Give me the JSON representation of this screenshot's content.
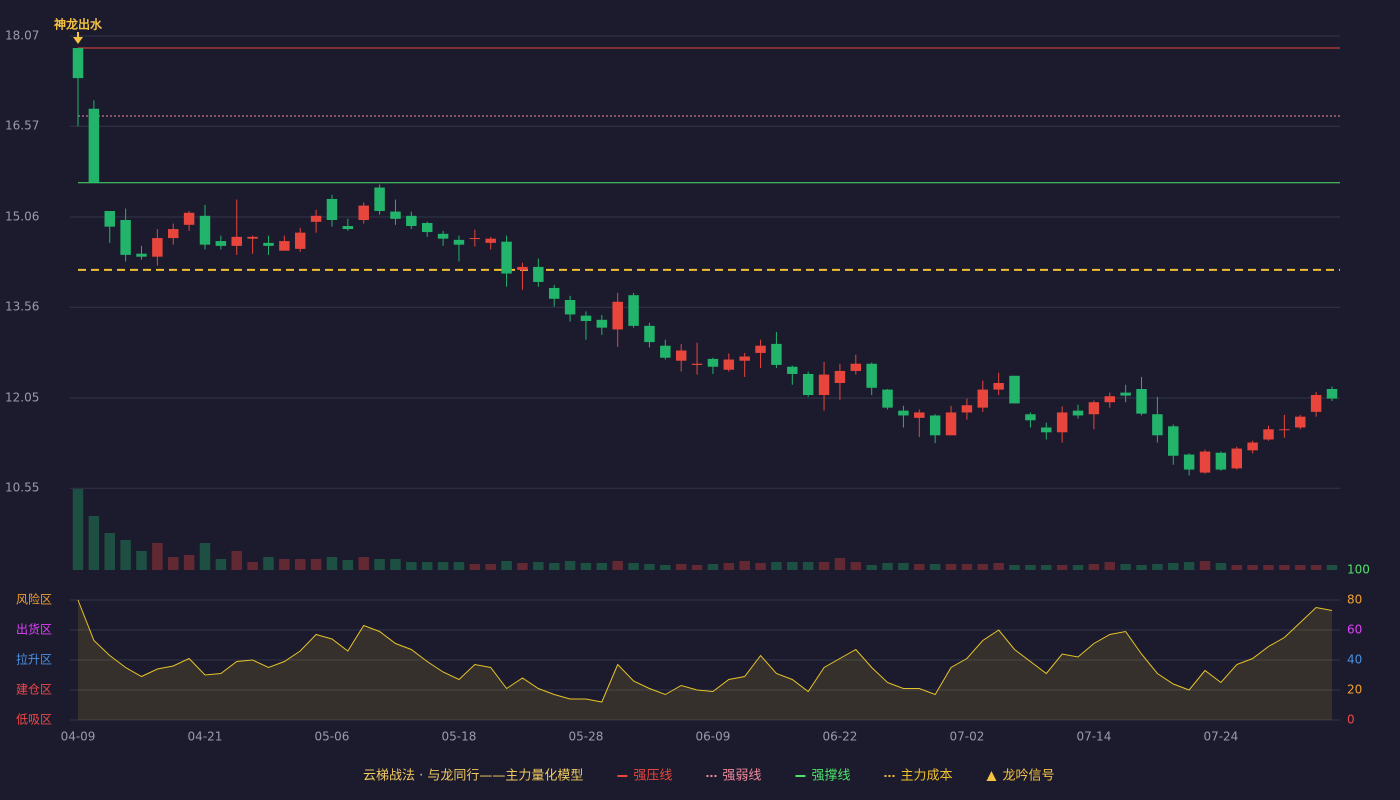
{
  "chart_data": [
    {
      "type": "candlestick",
      "categories": [
        "04-09",
        null,
        null,
        null,
        null,
        null,
        null,
        null,
        "04-21",
        null,
        null,
        null,
        null,
        null,
        null,
        null,
        "05-06",
        null,
        null,
        null,
        null,
        null,
        null,
        null,
        "05-18",
        null,
        null,
        null,
        null,
        null,
        null,
        null,
        "05-28",
        null,
        null,
        null,
        null,
        null,
        null,
        null,
        "06-09",
        null,
        null,
        null,
        null,
        null,
        null,
        null,
        "06-22",
        null,
        null,
        null,
        null,
        null,
        null,
        null,
        "07-02",
        null,
        null,
        null,
        null,
        null,
        null,
        null,
        "07-14",
        null,
        null,
        null,
        null,
        null,
        null,
        null,
        "07-24",
        null,
        null,
        null,
        null,
        null,
        null,
        null
      ],
      "open": [
        17.87,
        16.86,
        15.16,
        15.01,
        14.45,
        14.4,
        14.71,
        14.93,
        15.08,
        14.66,
        14.58,
        14.7,
        14.63,
        14.5,
        14.53,
        14.98,
        15.36,
        14.91,
        15.01,
        15.55,
        15.15,
        15.08,
        14.96,
        14.78,
        14.68,
        14.7,
        14.63,
        14.65,
        14.18,
        14.23,
        13.88,
        13.68,
        13.42,
        13.35,
        13.19,
        13.76,
        13.25,
        12.92,
        12.67,
        12.6,
        12.7,
        12.52,
        12.67,
        12.8,
        12.95,
        12.57,
        12.45,
        12.1,
        12.3,
        12.5,
        12.62,
        12.19,
        11.84,
        11.72,
        11.76,
        11.43,
        11.81,
        11.89,
        12.19,
        12.42,
        11.78,
        11.56,
        11.48,
        11.84,
        11.78,
        11.98,
        12.14,
        12.2,
        11.78,
        11.58,
        11.11,
        10.81,
        11.14,
        10.88,
        11.18,
        11.36,
        11.52,
        11.56,
        11.82,
        12.2
      ],
      "high": [
        17.87,
        17.0,
        15.16,
        15.2,
        14.58,
        14.86,
        14.95,
        15.16,
        15.26,
        14.75,
        15.35,
        14.75,
        14.75,
        14.75,
        14.88,
        15.18,
        15.43,
        15.03,
        15.3,
        15.6,
        15.35,
        15.15,
        14.98,
        14.83,
        14.75,
        14.85,
        14.73,
        14.75,
        14.3,
        14.37,
        13.93,
        13.75,
        13.49,
        13.43,
        13.8,
        13.8,
        13.3,
        13.02,
        12.95,
        12.97,
        12.72,
        12.79,
        12.8,
        13.02,
        13.15,
        12.59,
        12.49,
        12.65,
        12.62,
        12.77,
        12.64,
        12.2,
        11.92,
        11.86,
        11.78,
        11.92,
        12.04,
        12.34,
        12.47,
        12.42,
        11.81,
        11.64,
        11.91,
        11.94,
        12.01,
        12.14,
        12.27,
        12.4,
        12.07,
        11.61,
        11.13,
        11.19,
        11.16,
        11.24,
        11.34,
        11.59,
        11.77,
        11.77,
        12.15,
        12.24
      ],
      "low": [
        16.57,
        15.63,
        14.63,
        14.32,
        14.35,
        14.25,
        14.6,
        14.83,
        14.52,
        14.52,
        14.43,
        14.45,
        14.43,
        14.5,
        14.48,
        14.8,
        14.9,
        14.83,
        14.95,
        15.1,
        14.93,
        14.86,
        14.73,
        14.58,
        14.32,
        14.57,
        14.52,
        13.9,
        13.85,
        13.9,
        13.57,
        13.32,
        13.02,
        13.1,
        12.9,
        13.22,
        12.89,
        12.69,
        12.49,
        12.44,
        12.45,
        12.49,
        12.4,
        12.55,
        12.55,
        12.27,
        12.07,
        11.84,
        12.02,
        12.44,
        12.1,
        11.86,
        11.56,
        11.4,
        11.3,
        11.43,
        11.69,
        11.82,
        12.1,
        11.96,
        11.56,
        11.36,
        11.31,
        11.71,
        11.53,
        11.89,
        11.98,
        11.76,
        11.31,
        10.94,
        10.76,
        10.79,
        10.84,
        10.86,
        11.13,
        11.34,
        11.39,
        11.53,
        11.74,
        12.0
      ],
      "close": [
        17.37,
        15.63,
        14.9,
        14.43,
        14.4,
        14.71,
        14.86,
        15.13,
        14.6,
        14.58,
        14.73,
        14.73,
        14.58,
        14.66,
        14.8,
        15.08,
        15.01,
        14.86,
        15.25,
        15.16,
        15.03,
        14.91,
        14.81,
        14.7,
        14.6,
        14.71,
        14.7,
        14.12,
        14.23,
        13.98,
        13.7,
        13.44,
        13.33,
        13.22,
        13.65,
        13.25,
        12.98,
        12.72,
        12.84,
        12.62,
        12.57,
        12.69,
        12.74,
        12.92,
        12.6,
        12.45,
        12.1,
        12.44,
        12.5,
        12.62,
        12.22,
        11.89,
        11.76,
        11.81,
        11.43,
        11.81,
        11.93,
        12.19,
        12.3,
        11.96,
        11.68,
        11.48,
        11.81,
        11.76,
        11.98,
        12.08,
        12.09,
        11.79,
        11.43,
        11.09,
        10.86,
        11.16,
        10.86,
        11.21,
        11.31,
        11.53,
        11.53,
        11.74,
        12.1,
        12.04
      ],
      "volume": [
        81,
        54,
        37,
        30,
        19,
        27,
        13,
        15,
        27,
        11,
        19,
        8,
        13,
        11,
        11,
        11,
        13,
        10,
        13,
        11,
        11,
        8,
        8,
        8,
        8,
        6,
        6,
        9,
        7,
        8,
        7,
        9,
        7,
        7,
        9,
        7,
        6,
        5,
        6,
        5,
        6,
        7,
        9,
        7,
        8,
        8,
        8,
        8,
        12,
        8,
        5,
        7,
        7,
        6,
        6,
        6,
        6,
        6,
        7,
        5,
        5,
        5,
        5,
        5,
        6,
        8,
        6,
        5,
        6,
        7,
        8,
        9,
        7,
        5,
        5,
        5,
        5,
        5,
        5,
        5
      ],
      "up_color": "#e8453c",
      "down_color": "#22b46a",
      "ylim": [
        9.19,
        18.07
      ],
      "yticks": [
        10.55,
        12.05,
        13.56,
        15.06,
        16.57,
        18.07
      ],
      "grid": true,
      "hlines": [
        {
          "name": "强压线",
          "value": 17.87,
          "color": "#e8453c",
          "style": "solid"
        },
        {
          "name": "强弱线",
          "value": 16.74,
          "color": "#f08a9a",
          "style": "dotted"
        },
        {
          "name": "强撑线",
          "value": 15.63,
          "color": "#4ee06a",
          "style": "solid"
        },
        {
          "name": "主力成本",
          "value": 14.18,
          "color": "#f0c030",
          "style": "dashed"
        }
      ],
      "signal": {
        "name": "龙吟信号",
        "color": "#f5c242"
      },
      "annotations": [
        {
          "text": "神龙出水",
          "x": "04-09"
        }
      ],
      "legend_title": "云梯战法 · 与龙同行——主力量化模型"
    },
    {
      "type": "line",
      "values": [
        80,
        53,
        43,
        35,
        29,
        34,
        36,
        41,
        30,
        31,
        39,
        40,
        35,
        39,
        46,
        57,
        54,
        46,
        63,
        59,
        51,
        47,
        39,
        32,
        27,
        37,
        35,
        21,
        28,
        21,
        17,
        14,
        14,
        12,
        37,
        26,
        21,
        17,
        23,
        20,
        19,
        27,
        29,
        43,
        31,
        27,
        19,
        35,
        41,
        47,
        35,
        25,
        21,
        21,
        17,
        35,
        41,
        53,
        60,
        47,
        39,
        31,
        44,
        42,
        51,
        57,
        59,
        44,
        31,
        24,
        20,
        33,
        25,
        37,
        41,
        49,
        55,
        65,
        75,
        73
      ],
      "color": "#e6c229",
      "ylim": [
        0,
        100
      ],
      "yticks": [
        0,
        20,
        40,
        60,
        80,
        100
      ],
      "ytick_colors": [
        "#f04848",
        "#f0a030",
        "#4a90e2",
        "#e040fb",
        "#f0a030",
        "#4ee06a"
      ],
      "zones": [
        {
          "label": "风险区",
          "value": 80,
          "color": "#f0a030"
        },
        {
          "label": "出货区",
          "value": 60,
          "color": "#e040fb"
        },
        {
          "label": "拉升区",
          "value": 40,
          "color": "#4a90e2"
        },
        {
          "label": "建仓区",
          "value": 20,
          "color": "#f04848"
        },
        {
          "label": "低吸区",
          "value": 0,
          "color": "#f04848"
        }
      ],
      "grid": true
    }
  ]
}
